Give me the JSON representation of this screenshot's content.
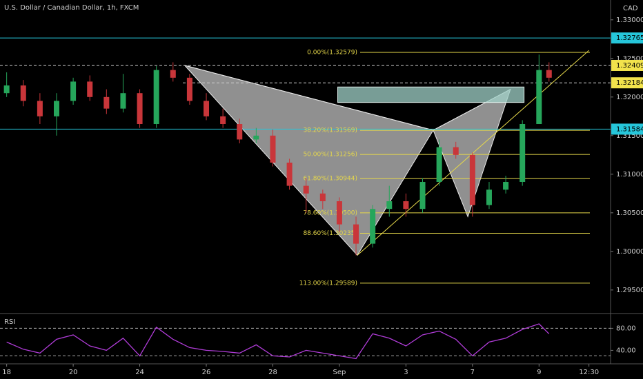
{
  "chart_data": {
    "type": "candlestick",
    "title": "U.S. Dollar / Canadian Dollar, 1h, FXCM",
    "currency": "CAD",
    "x": [
      0,
      0.5,
      1,
      1.5,
      2,
      2.5,
      3,
      3.5,
      4,
      4.5,
      5,
      5.5,
      6,
      6.5,
      7,
      7.5,
      8,
      8.5,
      9,
      9.5,
      10,
      10.5,
      11,
      11.5,
      12,
      12.5,
      13,
      13.5,
      14,
      14.5,
      15,
      15.5,
      16,
      16.3
    ],
    "open": [
      1.3205,
      1.3215,
      1.3195,
      1.3175,
      1.3195,
      1.322,
      1.32,
      1.3185,
      1.3205,
      1.3165,
      1.3235,
      1.3225,
      1.3195,
      1.3175,
      1.3165,
      1.3145,
      1.315,
      1.3115,
      1.3085,
      1.3075,
      1.3065,
      1.3035,
      1.301,
      1.3055,
      1.3065,
      1.3055,
      1.309,
      1.3135,
      1.3125,
      1.306,
      1.308,
      1.309,
      1.3165,
      1.3235
    ],
    "high": [
      1.3232,
      1.3222,
      1.3205,
      1.3205,
      1.3225,
      1.3228,
      1.321,
      1.323,
      1.321,
      1.324,
      1.3245,
      1.323,
      1.3205,
      1.3185,
      1.3172,
      1.316,
      1.3158,
      1.312,
      1.3095,
      1.308,
      1.307,
      1.3045,
      1.306,
      1.3085,
      1.3075,
      1.3095,
      1.3145,
      1.3142,
      1.3128,
      1.309,
      1.3098,
      1.317,
      1.3255,
      1.3245
    ],
    "low": [
      1.32,
      1.3188,
      1.3165,
      1.315,
      1.319,
      1.3195,
      1.3178,
      1.318,
      1.316,
      1.316,
      1.322,
      1.319,
      1.317,
      1.316,
      1.314,
      1.314,
      1.311,
      1.308,
      1.305,
      1.3055,
      1.3025,
      1.2995,
      1.3005,
      1.3045,
      1.3045,
      1.305,
      1.3085,
      1.312,
      1.3045,
      1.3055,
      1.3075,
      1.3085,
      1.3165,
      1.322
    ],
    "close": [
      1.3215,
      1.3195,
      1.3175,
      1.3195,
      1.322,
      1.32,
      1.3185,
      1.3205,
      1.3165,
      1.3235,
      1.3225,
      1.3195,
      1.3175,
      1.3165,
      1.3145,
      1.315,
      1.3115,
      1.3085,
      1.3075,
      1.3065,
      1.3035,
      1.301,
      1.3055,
      1.3065,
      1.3055,
      1.309,
      1.3135,
      1.3125,
      1.306,
      1.308,
      1.309,
      1.3165,
      1.3235,
      1.3225
    ],
    "up_color": "#26a65b",
    "down_color": "#c9363a",
    "xlim": [
      -0.2,
      18.15
    ],
    "xticks": [
      {
        "value": 0,
        "label": "18"
      },
      {
        "value": 2,
        "label": "20"
      },
      {
        "value": 4,
        "label": "24"
      },
      {
        "value": 6,
        "label": "26"
      },
      {
        "value": 8,
        "label": "28"
      },
      {
        "value": 10,
        "label": "Sep"
      },
      {
        "value": 12,
        "label": "3"
      },
      {
        "value": 14,
        "label": "7"
      },
      {
        "value": 16,
        "label": "9"
      },
      {
        "value": 17.5,
        "label": "12:30"
      }
    ],
    "ylim": [
      1.29195,
      1.33257
    ],
    "yticks": [
      {
        "value": 1.33,
        "label": "1.33000"
      },
      {
        "value": 1.325,
        "label": "1.32500"
      },
      {
        "value": 1.32,
        "label": "1.32000"
      },
      {
        "value": 1.315,
        "label": "1.31500"
      },
      {
        "value": 1.31,
        "label": "1.31000"
      },
      {
        "value": 1.305,
        "label": "1.30500"
      },
      {
        "value": 1.3,
        "label": "1.30000"
      },
      {
        "value": 1.295,
        "label": "1.29500"
      }
    ],
    "levels": [
      {
        "value": 1.32765,
        "label": "1.32765",
        "color": "#26c6da",
        "dashed": false
      },
      {
        "value": 1.32409,
        "label": "1.32409",
        "color": "#f2e34c",
        "dashed": true
      },
      {
        "value": 1.32184,
        "label": "1.32184",
        "color": "#f2e34c",
        "dashed": true
      },
      {
        "value": 1.31584,
        "label": "1.31584",
        "color": "#26c6da",
        "dashed": false
      }
    ],
    "fib": [
      {
        "value": 1.32579,
        "label": "0.00%(1.32579)"
      },
      {
        "value": 1.31569,
        "label": "38.20%(1.31569)"
      },
      {
        "value": 1.31256,
        "label": "50.00%(1.31256)"
      },
      {
        "value": 1.30944,
        "label": "61.80%(1.30944)"
      },
      {
        "value": 1.305,
        "label": "78.60%(1.30500)"
      },
      {
        "value": 1.30235,
        "label": "88.60%(1.30235)"
      },
      {
        "value": 1.29589,
        "label": "113.00%(1.29589)"
      }
    ],
    "fib_color": "#e6d84a",
    "pattern_x": [
      5.35,
      10.54,
      12.82,
      13.86,
      15.14
    ],
    "pattern_y": [
      1.3241,
      1.2995,
      1.3157,
      1.3045,
      1.321
    ],
    "box_x": [
      9.95,
      15.55
    ],
    "box_y": [
      1.3193,
      1.3213
    ],
    "trend_x": [
      10.54,
      17.5
    ],
    "trend_y": [
      1.2995,
      1.32604
    ],
    "rsi": {
      "name": "RSI",
      "color": "#b03cd8",
      "values": [
        55,
        42,
        35,
        60,
        68,
        48,
        40,
        62,
        30,
        82,
        60,
        45,
        40,
        38,
        35,
        50,
        30,
        28,
        40,
        35,
        30,
        25,
        70,
        62,
        48,
        68,
        75,
        60,
        30,
        55,
        62,
        78,
        88,
        70
      ],
      "ylim": [
        18,
        103
      ],
      "yticks": [
        {
          "value": 80,
          "label": "80.00"
        },
        {
          "value": 40,
          "label": "40.00"
        }
      ],
      "bands": [
        80,
        30
      ]
    }
  }
}
